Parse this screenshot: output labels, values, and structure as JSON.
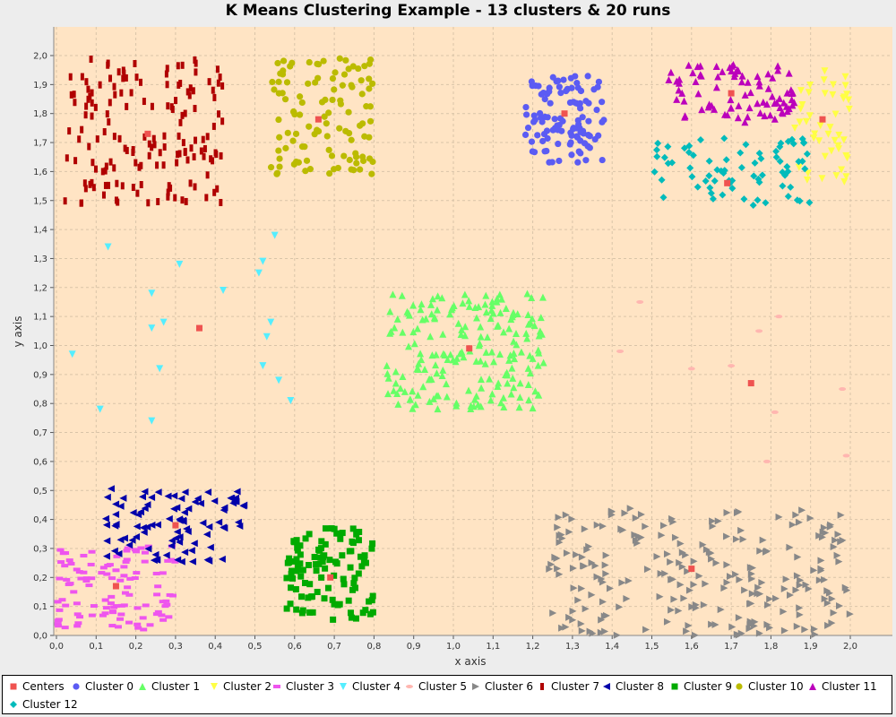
{
  "chart_data": {
    "type": "scatter",
    "title": "K Means Clustering Example - 13 clusters & 20 runs",
    "xlabel": "x axis",
    "ylabel": "y axis",
    "xlim": [
      0,
      2.1
    ],
    "ylim": [
      0,
      2.1
    ],
    "x_ticks": [
      "0,0",
      "0,1",
      "0,2",
      "0,3",
      "0,4",
      "0,5",
      "0,6",
      "0,7",
      "0,8",
      "0,9",
      "1,0",
      "1,1",
      "1,2",
      "1,3",
      "1,4",
      "1,5",
      "1,6",
      "1,7",
      "1,8",
      "1,9",
      "2,0"
    ],
    "y_ticks": [
      "0,0",
      "0,1",
      "0,2",
      "0,3",
      "0,4",
      "0,5",
      "0,6",
      "0,7",
      "0,8",
      "0,9",
      "1,0",
      "1,1",
      "1,2",
      "1,3",
      "1,4",
      "1,5",
      "1,6",
      "1,7",
      "1,8",
      "1,9",
      "2,0"
    ],
    "grid": true,
    "legend_position": "bottom",
    "plot_background": "#ffe4c4",
    "series": [
      {
        "name": "Centers",
        "color": "#ef5350",
        "marker": "square",
        "points": [
          [
            0.15,
            0.17
          ],
          [
            0.3,
            0.38
          ],
          [
            0.36,
            1.06
          ],
          [
            0.66,
            1.78
          ],
          [
            0.69,
            0.2
          ],
          [
            1.04,
            0.99
          ],
          [
            1.28,
            1.8
          ],
          [
            1.6,
            0.23
          ],
          [
            1.69,
            1.56
          ],
          [
            1.7,
            1.87
          ],
          [
            1.75,
            0.87
          ],
          [
            1.93,
            1.78
          ],
          [
            0.23,
            1.73
          ]
        ]
      },
      {
        "name": "Cluster 0",
        "color": "#5b5bf3",
        "marker": "circle",
        "center": [
          1.28,
          1.78
        ],
        "spread": [
          0.1,
          0.15
        ],
        "count": 110
      },
      {
        "name": "Cluster 1",
        "color": "#66ff66",
        "marker": "triangle-up",
        "center": [
          1.03,
          0.98
        ],
        "spread": [
          0.2,
          0.2
        ],
        "count": 200
      },
      {
        "name": "Cluster 2",
        "color": "#ffff44",
        "marker": "triangle-down",
        "center": [
          1.93,
          1.76
        ],
        "spread": [
          0.07,
          0.2
        ],
        "count": 45
      },
      {
        "name": "Cluster 3",
        "color": "#ee55ee",
        "marker": "rect",
        "center": [
          0.15,
          0.17
        ],
        "spread": [
          0.15,
          0.15
        ],
        "count": 110
      },
      {
        "name": "Cluster 4",
        "color": "#55eeff",
        "marker": "triangle-down",
        "points": [
          [
            0.13,
            1.34
          ],
          [
            0.31,
            1.28
          ],
          [
            0.24,
            1.18
          ],
          [
            0.42,
            1.19
          ],
          [
            0.27,
            1.08
          ],
          [
            0.24,
            1.06
          ],
          [
            0.04,
            0.97
          ],
          [
            0.26,
            0.92
          ],
          [
            0.11,
            0.78
          ],
          [
            0.24,
            0.74
          ],
          [
            0.51,
            1.25
          ],
          [
            0.52,
            1.29
          ],
          [
            0.55,
            1.38
          ],
          [
            0.53,
            1.03
          ],
          [
            0.54,
            1.08
          ],
          [
            0.52,
            0.93
          ],
          [
            0.56,
            0.88
          ],
          [
            0.59,
            0.81
          ]
        ]
      },
      {
        "name": "Cluster 5",
        "color": "#ffb6b0",
        "marker": "ellipse",
        "points": [
          [
            1.47,
            1.15
          ],
          [
            1.42,
            0.98
          ],
          [
            1.6,
            0.92
          ],
          [
            1.7,
            0.93
          ],
          [
            1.77,
            1.05
          ],
          [
            1.82,
            1.1
          ],
          [
            1.81,
            0.77
          ],
          [
            1.79,
            0.6
          ],
          [
            1.98,
            0.85
          ],
          [
            1.99,
            0.62
          ]
        ]
      },
      {
        "name": "Cluster 6",
        "color": "#888888",
        "marker": "triangle-right",
        "center": [
          1.62,
          0.22
        ],
        "spread": [
          0.38,
          0.22
        ],
        "count": 230
      },
      {
        "name": "Cluster 7",
        "color": "#b00000",
        "marker": "rect-tall",
        "center": [
          0.22,
          1.74
        ],
        "spread": [
          0.2,
          0.25
        ],
        "count": 160
      },
      {
        "name": "Cluster 8",
        "color": "#0000aa",
        "marker": "triangle-left",
        "center": [
          0.3,
          0.38
        ],
        "spread": [
          0.18,
          0.13
        ],
        "count": 95
      },
      {
        "name": "Cluster 9",
        "color": "#00aa00",
        "marker": "square",
        "center": [
          0.69,
          0.21
        ],
        "spread": [
          0.11,
          0.16
        ],
        "count": 110
      },
      {
        "name": "Cluster 10",
        "color": "#bbbb00",
        "marker": "circle",
        "center": [
          0.67,
          1.79
        ],
        "spread": [
          0.13,
          0.2
        ],
        "count": 110
      },
      {
        "name": "Cluster 11",
        "color": "#bb00bb",
        "marker": "triangle-up",
        "center": [
          1.7,
          1.87
        ],
        "spread": [
          0.16,
          0.1
        ],
        "count": 85
      },
      {
        "name": "Cluster 12",
        "color": "#00bbbb",
        "marker": "diamond",
        "center": [
          1.7,
          1.6
        ],
        "spread": [
          0.2,
          0.12
        ],
        "count": 75
      }
    ]
  }
}
